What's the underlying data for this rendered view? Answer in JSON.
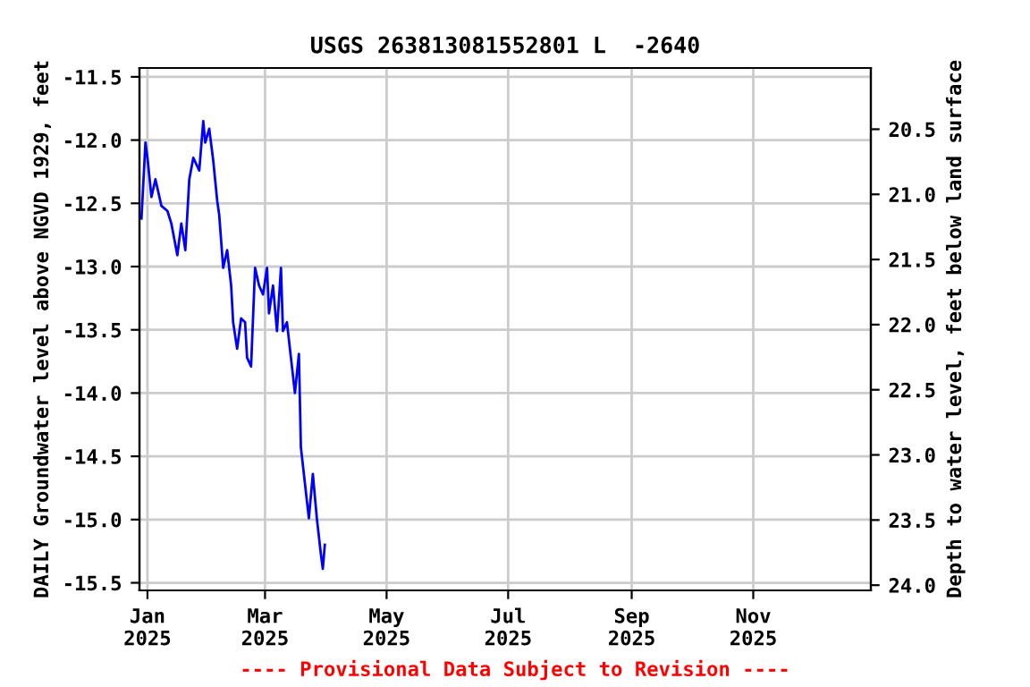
{
  "chart_data": {
    "type": "line",
    "title": "USGS 263813081552801 L  -2640",
    "ylabel": "DAILY Groundwater level above NGVD 1929, feet",
    "y2label": "Depth to water level, feet below land surface",
    "annotations": [
      "---- Provisional Data Subject to Revision ----"
    ],
    "x": [
      "2024-12-29",
      "2024-12-31",
      "2025-01-01",
      "2025-01-03",
      "2025-01-05",
      "2025-01-08",
      "2025-01-11",
      "2025-01-13",
      "2025-01-16",
      "2025-01-18",
      "2025-01-20",
      "2025-01-22",
      "2025-01-24",
      "2025-01-27",
      "2025-01-29",
      "2025-01-30",
      "2025-02-01",
      "2025-02-03",
      "2025-02-05",
      "2025-02-06",
      "2025-02-08",
      "2025-02-10",
      "2025-02-12",
      "2025-02-13",
      "2025-02-15",
      "2025-02-17",
      "2025-02-19",
      "2025-02-20",
      "2025-02-22",
      "2025-02-24",
      "2025-02-26",
      "2025-02-28",
      "2025-03-02",
      "2025-03-03",
      "2025-03-05",
      "2025-03-07",
      "2025-03-09",
      "2025-03-10",
      "2025-03-12",
      "2025-03-14",
      "2025-03-16",
      "2025-03-18",
      "2025-03-19",
      "2025-03-21",
      "2025-03-23",
      "2025-03-25",
      "2025-03-27",
      "2025-03-29",
      "2025-03-30",
      "2025-03-31"
    ],
    "series": [
      {
        "color": "#0000ff",
        "values": [
          -12.62,
          -12.02,
          -12.14,
          -12.45,
          -12.31,
          -12.52,
          -12.56,
          -12.66,
          -12.91,
          -12.66,
          -12.87,
          -12.31,
          -12.14,
          -12.24,
          -11.85,
          -12.02,
          -11.91,
          -12.16,
          -12.48,
          -12.59,
          -13.01,
          -12.87,
          -13.15,
          -13.44,
          -13.65,
          -13.41,
          -13.44,
          -13.72,
          -13.79,
          -13.01,
          -13.15,
          -13.22,
          -13.01,
          -13.37,
          -13.15,
          -13.51,
          -13.01,
          -13.51,
          -13.44,
          -13.72,
          -14.0,
          -13.69,
          -14.43,
          -14.71,
          -14.99,
          -14.64,
          -14.99,
          -15.27,
          -15.39,
          -15.2
        ]
      }
    ],
    "xlim": [
      "2024-12-28",
      "2025-12-30"
    ],
    "xticks": [
      {
        "value": "2025-01-01",
        "label": "Jan\n2025"
      },
      {
        "value": "2025-03-01",
        "label": "Mar\n2025"
      },
      {
        "value": "2025-05-01",
        "label": "May\n2025"
      },
      {
        "value": "2025-07-01",
        "label": "Jul\n2025"
      },
      {
        "value": "2025-09-01",
        "label": "Sep\n2025"
      },
      {
        "value": "2025-11-01",
        "label": "Nov\n2025"
      }
    ],
    "ylim": [
      -15.56,
      -11.43
    ],
    "yticks": [
      -15.5,
      {
        "value": -15,
        "label": "-15.0"
      },
      -14.5,
      {
        "value": -14,
        "label": "-14.0"
      },
      -13.5,
      {
        "value": -13,
        "label": "-13.0"
      },
      -12.5,
      {
        "value": -12,
        "label": "-12.0"
      },
      -11.5
    ],
    "y2lim": [
      24.04,
      20.03
    ],
    "y2ticks": [
      {
        "value": 24,
        "label": "24.0"
      },
      23.5,
      {
        "value": 23,
        "label": "23.0"
      },
      22.5,
      {
        "value": 22,
        "label": "22.0"
      },
      21.5,
      {
        "value": 21,
        "label": "21.0"
      },
      20.5
    ],
    "grid": true,
    "legend": false
  }
}
